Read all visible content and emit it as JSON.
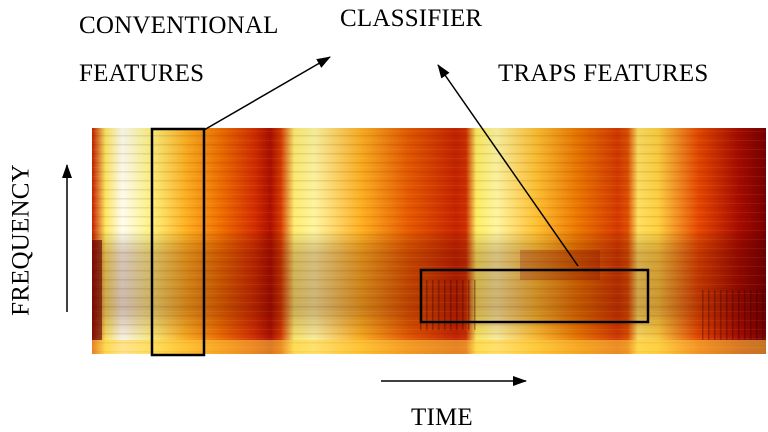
{
  "labels": {
    "conventional_line1": "CONVENTIONAL",
    "conventional_line2": "FEATURES",
    "classifier": "CLASSIFIER",
    "traps_features": "TRAPS FEATURES",
    "time": "TIME",
    "frequency": "FREQUENCY"
  },
  "colors": {
    "outline": "#000000",
    "spectrogram_dark": "#8b0000",
    "spectrogram_red": "#d42a00",
    "spectrogram_orange": "#f08a00",
    "spectrogram_yellow": "#fff060",
    "spectrogram_bright": "#fffde8"
  }
}
